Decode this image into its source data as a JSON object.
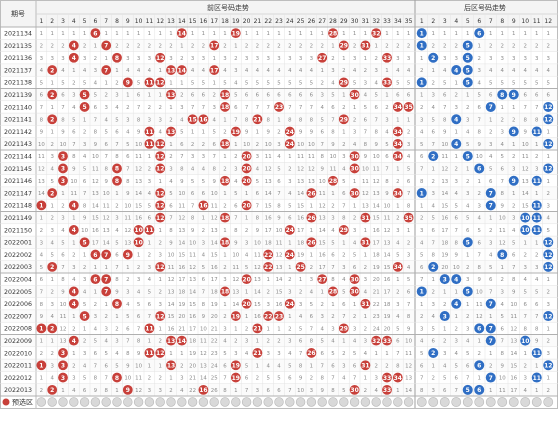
{
  "header": {
    "period_label": "期号",
    "front_title": "前区号码走势",
    "back_title": "后区号码走势"
  },
  "front_numbers": [
    "1",
    "2",
    "3",
    "4",
    "5",
    "6",
    "7",
    "8",
    "9",
    "10",
    "11",
    "12",
    "13",
    "14",
    "15",
    "16",
    "17",
    "18",
    "19",
    "20",
    "21",
    "22",
    "23",
    "24",
    "25",
    "26",
    "27",
    "28",
    "29",
    "30",
    "31",
    "32",
    "33",
    "34",
    "35"
  ],
  "back_numbers": [
    "1",
    "2",
    "3",
    "4",
    "5",
    "6",
    "7",
    "8",
    "9",
    "10",
    "11",
    "12"
  ],
  "footer": {
    "label": "预选区"
  },
  "colors": {
    "front_ball": "#c8403a",
    "back_ball": "#2f6ec4",
    "miss_text": "#8a8a8a",
    "grid": "#e3e3e3"
  },
  "draws": [
    {
      "period": "2021134",
      "front": [
        6,
        14,
        19,
        28,
        32
      ],
      "back": [
        1,
        6
      ]
    },
    {
      "period": "2021135",
      "front": [
        4,
        7,
        17,
        29,
        31
      ],
      "back": [
        1,
        5
      ]
    },
    {
      "period": "2021136",
      "front": [
        4,
        8,
        12,
        27,
        33
      ],
      "back": [
        2,
        5
      ]
    },
    {
      "period": "2021137",
      "front": [
        2,
        7,
        13,
        14,
        17
      ],
      "back": [
        4,
        5
      ]
    },
    {
      "period": "2021138",
      "front": [
        9,
        11,
        12,
        29,
        33
      ],
      "back": [
        1,
        5
      ]
    },
    {
      "period": "2021139",
      "front": [
        2,
        5,
        13,
        18,
        30
      ],
      "back": [
        8,
        9
      ]
    },
    {
      "period": "2021140",
      "front": [
        5,
        18,
        23,
        34,
        35
      ],
      "back": [
        7,
        12
      ]
    },
    {
      "period": "2021141",
      "front": [
        2,
        15,
        16,
        21,
        29
      ],
      "back": [
        4,
        12
      ]
    },
    {
      "period": "2021142",
      "front": [
        11,
        13,
        19,
        24,
        34
      ],
      "back": [
        9,
        11
      ]
    },
    {
      "period": "2021143",
      "front": [
        11,
        12,
        18,
        24,
        34
      ],
      "back": [
        4,
        12
      ]
    },
    {
      "period": "2021144",
      "front": [
        3,
        20,
        30,
        34,
        12
      ],
      "back": [
        2,
        5
      ]
    },
    {
      "period": "2021145",
      "front": [
        3,
        8,
        12,
        20,
        30
      ],
      "back": [
        6,
        12
      ]
    },
    {
      "period": "2021146",
      "front": [
        3,
        8,
        18,
        20,
        28
      ],
      "back": [
        9,
        11
      ]
    },
    {
      "period": "2021147",
      "front": [
        2,
        12,
        26,
        30,
        34
      ],
      "back": [
        1,
        7
      ]
    },
    {
      "period": "2021148",
      "front": [
        1,
        4,
        12,
        16,
        20
      ],
      "back": [
        7,
        11
      ]
    },
    {
      "period": "2021149",
      "front": [
        12,
        18,
        26,
        31,
        35
      ],
      "back": [
        10,
        11
      ]
    },
    {
      "period": "2021150",
      "front": [
        4,
        10,
        11,
        24,
        29
      ],
      "back": [
        10,
        11
      ]
    },
    {
      "period": "2022001",
      "front": [
        5,
        10,
        18,
        26,
        31
      ],
      "back": [
        5,
        12
      ]
    },
    {
      "period": "2022002",
      "front": [
        6,
        7,
        9,
        22,
        24
      ],
      "back": [
        8,
        12
      ]
    },
    {
      "period": "2022003",
      "front": [
        2,
        12,
        22,
        25,
        34
      ],
      "back": [
        2,
        12
      ]
    },
    {
      "period": "2022004",
      "front": [
        6,
        7,
        20,
        27,
        30
      ],
      "back": [
        3,
        4
      ]
    },
    {
      "period": "2022005",
      "front": [
        4,
        7,
        18,
        28,
        30
      ],
      "back": [
        1,
        5
      ]
    },
    {
      "period": "2022006",
      "front": [
        4,
        8,
        20,
        24,
        31
      ],
      "back": [
        4,
        7
      ]
    },
    {
      "period": "2022007",
      "front": [
        5,
        12,
        19,
        22,
        23
      ],
      "back": [
        3,
        12
      ]
    },
    {
      "period": "2022008",
      "front": [
        1,
        2,
        11,
        21,
        29
      ],
      "back": [
        6,
        7
      ]
    },
    {
      "period": "2022009",
      "front": [
        4,
        13,
        14,
        32,
        33
      ],
      "back": [
        7,
        10
      ]
    },
    {
      "period": "2022010",
      "front": [
        3,
        11,
        12,
        21,
        26
      ],
      "back": [
        2,
        11
      ]
    },
    {
      "period": "2022011",
      "front": [
        1,
        3,
        13,
        19,
        31
      ],
      "back": [
        6,
        12
      ]
    },
    {
      "period": "2022012",
      "front": [
        3,
        8,
        19,
        33,
        34
      ],
      "back": [
        7,
        11
      ]
    },
    {
      "period": "2022013",
      "front": [
        2,
        9,
        16,
        30,
        33
      ],
      "back": [
        5,
        6
      ]
    }
  ]
}
